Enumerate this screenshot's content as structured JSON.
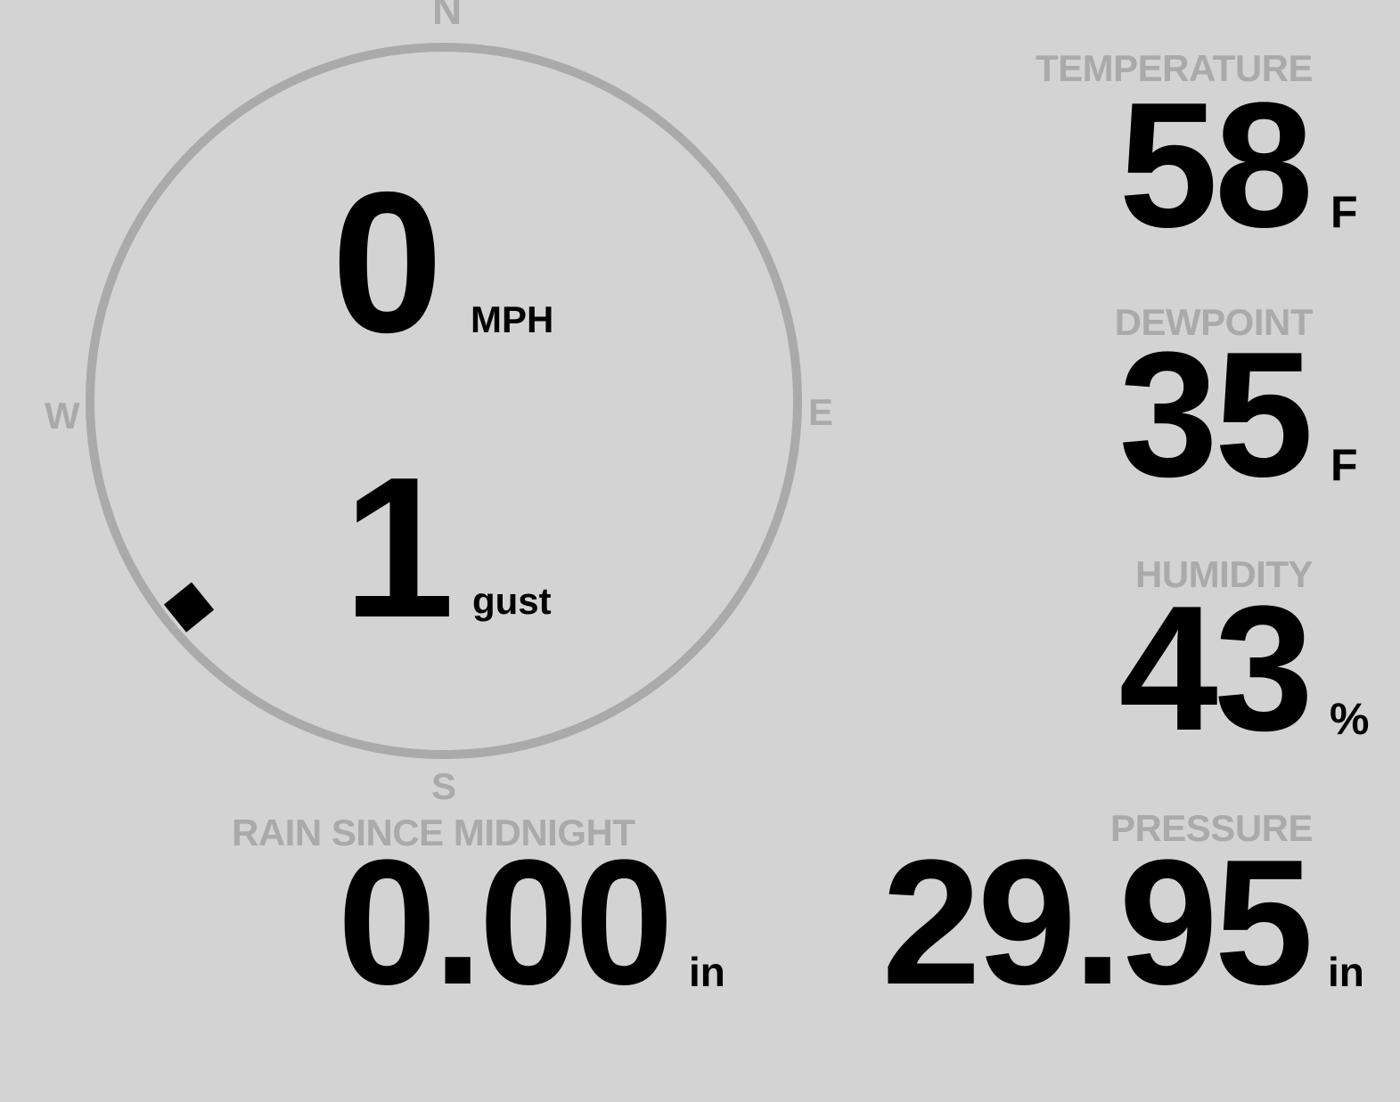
{
  "colors": {
    "background": "#d3d3d3",
    "label": "#aaaaaa",
    "value": "#000000",
    "dial": "#aaaaaa"
  },
  "wind": {
    "cardinals": {
      "n": "N",
      "e": "E",
      "s": "S",
      "w": "W"
    },
    "speed": "0",
    "speed_unit": "MPH",
    "gust": "1",
    "gust_unit": "gust",
    "direction_degrees": 231,
    "direction_marker_icon": "diamond-marker"
  },
  "temperature": {
    "label": "TEMPERATURE",
    "value": "58",
    "unit": "F"
  },
  "dewpoint": {
    "label": "DEWPOINT",
    "value": "35",
    "unit": "F"
  },
  "humidity": {
    "label": "HUMIDITY",
    "value": "43",
    "unit": "%"
  },
  "pressure": {
    "label": "PRESSURE",
    "value": "29.95",
    "unit": "in"
  },
  "rain": {
    "label": "RAIN SINCE MIDNIGHT",
    "value": "0.00",
    "unit": "in"
  }
}
